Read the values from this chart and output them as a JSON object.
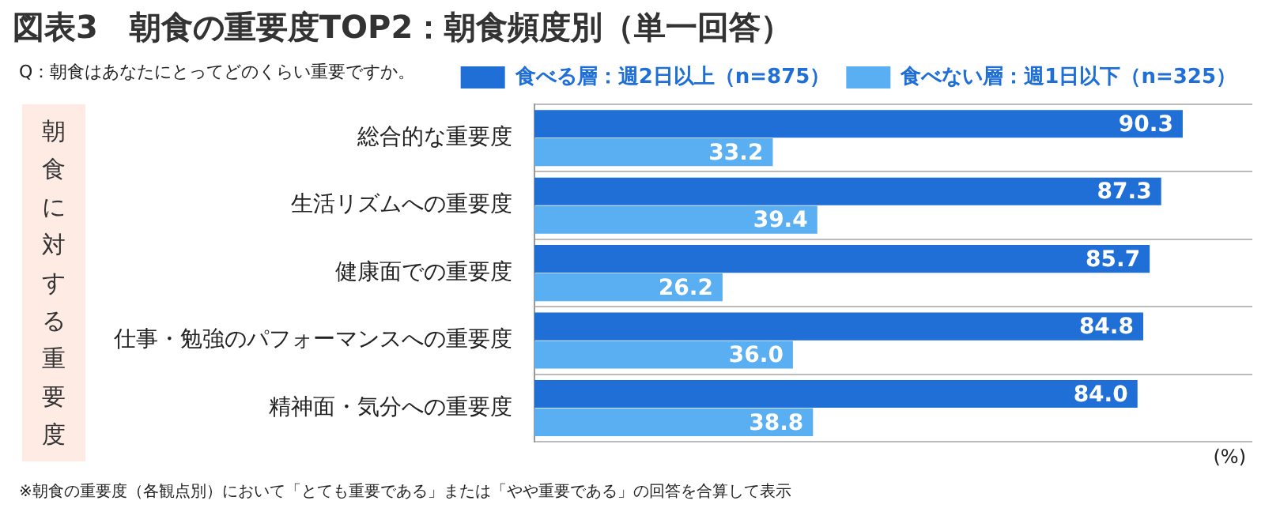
{
  "chart_data": {
    "type": "bar",
    "orientation": "horizontal",
    "title": "図表3　朝食の重要度TOP2：朝食頻度別（単一回答）",
    "subtitle": "Q：朝食はあなたにとってどのくらい重要ですか。",
    "ylabel": "朝食に対する重要度",
    "categories": [
      "総合的な重要度",
      "生活リズムへの重要度",
      "健康面での重要度",
      "仕事・勉強のパフォーマンスへの重要度",
      "精神面・気分への重要度"
    ],
    "series": [
      {
        "name": "食べる層：週2日以上（n=875）",
        "color": "#1f6fd6",
        "values": [
          90.3,
          87.3,
          85.7,
          84.8,
          84.0
        ],
        "value_labels": [
          "90.3",
          "87.3",
          "85.7",
          "84.8",
          "84.0"
        ]
      },
      {
        "name": "食べない層：週1日以下（n=325）",
        "color": "#5aaef2",
        "values": [
          33.2,
          39.4,
          26.2,
          36.0,
          38.8
        ],
        "value_labels": [
          "33.2",
          "39.4",
          "26.2",
          "36.0",
          "38.8"
        ]
      }
    ],
    "legend": "top right",
    "grid": "y",
    "annotations": [
      "(%)",
      "※朝食の重要度（各観点別）において「とても重要である」または「やや重要である」の回答を合算して表示"
    ]
  }
}
